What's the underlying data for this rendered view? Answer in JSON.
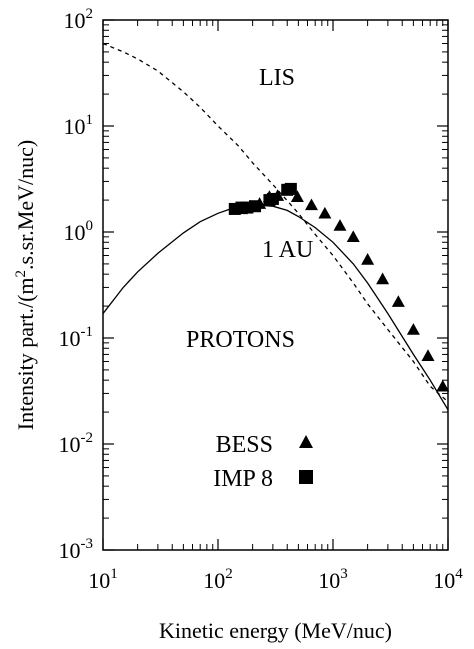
{
  "chart_data": {
    "type": "line",
    "xlabel": "Kinetic energy (MeV/nuc)",
    "ylabel": {
      "prefix": "Intensity part./(m",
      "sup": "2",
      "suffix": ".s.sr.MeV/nuc)"
    },
    "x_scale": "log",
    "y_scale": "log",
    "xlim": [
      10,
      10000
    ],
    "ylim": [
      0.001,
      100
    ],
    "grid": false,
    "x_ticks": [
      {
        "value": 10,
        "base": "10",
        "exp": "1"
      },
      {
        "value": 100,
        "base": "10",
        "exp": "2"
      },
      {
        "value": 1000,
        "base": "10",
        "exp": "3"
      },
      {
        "value": 10000,
        "base": "10",
        "exp": "4"
      }
    ],
    "y_ticks": [
      {
        "value": 100,
        "base": "10",
        "exp": "2"
      },
      {
        "value": 10,
        "base": "10",
        "exp": "1"
      },
      {
        "value": 1,
        "base": "10",
        "exp": "0"
      },
      {
        "value": 0.1,
        "base": "10",
        "exp": "-1"
      },
      {
        "value": 0.01,
        "base": "10",
        "exp": "-2"
      },
      {
        "value": 0.001,
        "base": "10",
        "exp": "-3"
      }
    ],
    "annotations": {
      "lis": "LIS",
      "one_au": "1 AU",
      "protons": "PROTONS"
    },
    "legend": {
      "placement": "bottom-center",
      "entries": [
        {
          "label": "BESS",
          "marker": "triangle"
        },
        {
          "label": "IMP 8",
          "marker": "square"
        }
      ]
    },
    "series": [
      {
        "style": "dashed",
        "x": [
          10,
          15,
          20,
          30,
          50,
          70,
          100,
          150,
          200,
          300,
          500,
          700,
          1000,
          1500,
          2000,
          3000,
          5000,
          7000,
          10000
        ],
        "y": [
          60,
          50,
          43,
          33,
          21,
          15,
          10,
          6.5,
          4.5,
          2.8,
          1.5,
          0.95,
          0.6,
          0.33,
          0.21,
          0.12,
          0.06,
          0.035,
          0.025
        ]
      },
      {
        "style": "solid",
        "x": [
          10,
          15,
          20,
          30,
          50,
          70,
          100,
          150,
          200,
          300,
          400,
          500,
          700,
          1000,
          1500,
          2000,
          3000,
          5000,
          7000,
          10000
        ],
        "y": [
          0.17,
          0.3,
          0.42,
          0.63,
          0.98,
          1.25,
          1.5,
          1.75,
          1.8,
          1.75,
          1.6,
          1.4,
          1.1,
          0.8,
          0.5,
          0.33,
          0.17,
          0.07,
          0.04,
          0.021
        ]
      },
      {
        "name": "BESS",
        "marker": "triangle",
        "x": [
          160,
          190,
          230,
          280,
          330,
          400,
          490,
          650,
          850,
          1150,
          1500,
          2000,
          2700,
          3700,
          5000,
          6700,
          9000
        ],
        "y": [
          1.65,
          1.75,
          1.85,
          2.15,
          2.2,
          2.5,
          2.15,
          1.8,
          1.5,
          1.15,
          0.9,
          0.55,
          0.36,
          0.22,
          0.12,
          0.068,
          0.035
        ]
      },
      {
        "name": "IMP 8",
        "marker": "square",
        "x": [
          140,
          160,
          180,
          210,
          280,
          300,
          400,
          430
        ],
        "y": [
          1.65,
          1.7,
          1.7,
          1.75,
          2.0,
          2.05,
          2.5,
          2.55
        ]
      }
    ]
  }
}
